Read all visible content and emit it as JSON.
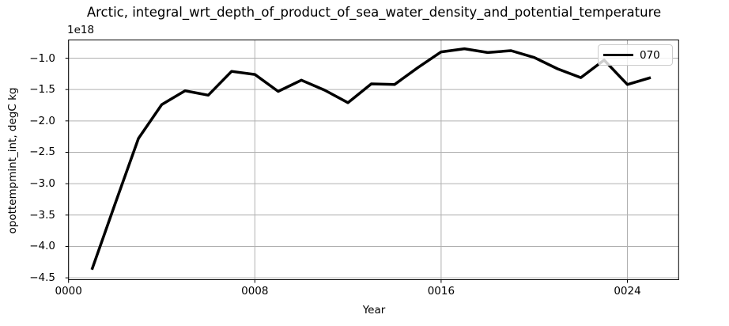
{
  "figure": {
    "background": "#ffffff"
  },
  "chart_data": {
    "type": "line",
    "title": "Arctic, integral_wrt_depth_of_product_of_sea_water_density_and_potential_temperature",
    "xlabel": "Year",
    "ylabel": "opottempmint_int, degC kg",
    "y_offset_text": "1e18",
    "xlim": [
      0,
      26.2
    ],
    "ylim": [
      -4.53,
      -0.71
    ],
    "grid": true,
    "grid_color": "#b0b0b0",
    "spine_color": "#000000",
    "legend_position": "upper right",
    "xticks": {
      "values": [
        0,
        8,
        16,
        24
      ],
      "labels": [
        "0000",
        "0008",
        "0016",
        "0024"
      ]
    },
    "yticks": {
      "values": [
        -1.0,
        -1.5,
        -2.0,
        -2.5,
        -3.0,
        -3.5,
        -4.0,
        -4.5
      ],
      "labels": [
        "−1.0",
        "−1.5",
        "−2.0",
        "−2.5",
        "−3.0",
        "−3.5",
        "−4.0",
        "−4.5"
      ]
    },
    "series": [
      {
        "name": "070",
        "color": "#000000",
        "linewidth": 3.5,
        "x": [
          1,
          2,
          3,
          4,
          5,
          6,
          7,
          8,
          9,
          10,
          11,
          12,
          13,
          14,
          15,
          16,
          17,
          18,
          19,
          20,
          21,
          22,
          23,
          24,
          25
        ],
        "values": [
          -4.37,
          -3.32,
          -2.28,
          -1.74,
          -1.52,
          -1.59,
          -1.21,
          -1.26,
          -1.53,
          -1.35,
          -1.51,
          -1.71,
          -1.41,
          -1.42,
          -1.15,
          -0.9,
          -0.85,
          -0.91,
          -0.88,
          -0.99,
          -1.17,
          -1.31,
          -1.03,
          -1.42,
          -1.31
        ],
        "value_units": "1e18 degC kg"
      }
    ]
  }
}
